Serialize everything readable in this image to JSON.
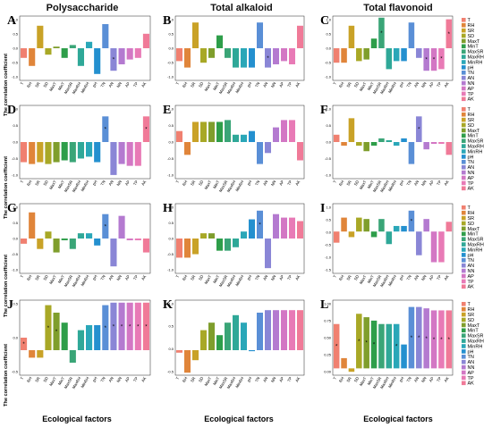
{
  "column_titles": [
    "Polysaccharide",
    "Total alkaloid",
    "Total flavonoid"
  ],
  "y_axis_label": "The correlation coefficient",
  "x_axis_label": "Ecological factors",
  "legend_title": "",
  "colors": [
    "#f08070",
    "#e0853a",
    "#c9a227",
    "#a8a826",
    "#7f9e2c",
    "#2e9e4a",
    "#3aa577",
    "#2fa898",
    "#2aa7b8",
    "#2490cf",
    "#5a8fd6",
    "#8a86d6",
    "#b47ad0",
    "#d377c4",
    "#e87ab6",
    "#f07a98"
  ],
  "chart_data": {
    "type": "bar",
    "categories": [
      "T",
      "RH",
      "SR",
      "SD",
      "MaxT",
      "MinT",
      "MaxSR",
      "MaxRH",
      "MinRH",
      "pH",
      "TN",
      "AN",
      "NN",
      "AP",
      "TP",
      "AK"
    ],
    "panels": [
      {
        "letter": "A",
        "ylim": [
          -1,
          1
        ],
        "ticks": [
          "1.0",
          "0.5",
          "0.0",
          "-0.5",
          "-1.0"
        ],
        "values": [
          -0.3,
          -0.55,
          0.7,
          -0.2,
          0.05,
          -0.3,
          0.1,
          -0.55,
          0.2,
          -0.8,
          0.75,
          -0.7,
          -0.5,
          -0.35,
          -0.3,
          0.45
        ],
        "stars": [
          11
        ]
      },
      {
        "letter": "B",
        "ylim": [
          -1,
          1
        ],
        "ticks": [
          "1.0",
          "0.5",
          "0.0",
          "-0.5",
          "-1.0"
        ],
        "values": [
          -0.4,
          -0.6,
          0.8,
          -0.45,
          -0.3,
          0.4,
          -0.3,
          -0.6,
          -0.6,
          -0.6,
          0.8,
          -0.6,
          -0.5,
          -0.4,
          -0.5,
          0.7
        ],
        "stars": [
          11
        ]
      },
      {
        "letter": "C",
        "ylim": [
          -1,
          1
        ],
        "ticks": [
          "1.0",
          "0.5",
          "0.0",
          "-0.5",
          "-1.0"
        ],
        "values": [
          -0.45,
          -0.45,
          0.7,
          -0.4,
          -0.35,
          0.3,
          0.95,
          -0.65,
          -0.4,
          -0.4,
          0.8,
          -0.3,
          -0.7,
          -0.7,
          -0.65,
          0.9
        ],
        "stars": [
          6,
          12,
          13,
          14,
          15
        ]
      },
      {
        "letter": "D",
        "ylim": [
          -1,
          1
        ],
        "ticks": [
          "1.0",
          "0.5",
          "0.0",
          "-0.5",
          "-1.0"
        ],
        "values": [
          -0.55,
          -0.6,
          -0.55,
          -0.6,
          -0.55,
          -0.5,
          -0.55,
          -0.45,
          -0.4,
          -0.55,
          0.7,
          -0.9,
          -0.6,
          -0.65,
          -0.65,
          0.7
        ],
        "stars": [
          10,
          15
        ]
      },
      {
        "letter": "E",
        "ylim": [
          -1,
          1
        ],
        "ticks": [
          "1.0",
          "0.5",
          "0.0",
          "-0.5",
          "-1.0"
        ],
        "values": [
          0.3,
          -0.35,
          0.55,
          0.55,
          0.55,
          0.55,
          0.6,
          0.2,
          0.2,
          0.3,
          -0.6,
          -0.3,
          0.4,
          0.6,
          0.6,
          -0.5
        ],
        "stars": []
      },
      {
        "letter": "F",
        "ylim": [
          -1,
          1
        ],
        "ticks": [
          "1.0",
          "0.5",
          "0.0",
          "-0.5",
          "-1.0"
        ],
        "values": [
          0.2,
          -0.1,
          0.65,
          -0.1,
          -0.25,
          -0.1,
          0.1,
          0.05,
          -0.1,
          0.1,
          -0.6,
          0.7,
          -0.2,
          -0.05,
          -0.05,
          -0.35
        ],
        "stars": [
          11
        ]
      },
      {
        "letter": "G",
        "ylim": [
          -1,
          1
        ],
        "ticks": [
          "1.0",
          "0.5",
          "0.0",
          "-0.5",
          "-1.0"
        ],
        "values": [
          -0.15,
          0.75,
          -0.3,
          0.2,
          -0.4,
          -0.05,
          -0.3,
          0.15,
          0.15,
          -0.2,
          0.7,
          -0.8,
          0.65,
          -0.05,
          -0.05,
          -0.4
        ],
        "stars": [
          10
        ]
      },
      {
        "letter": "H",
        "ylim": [
          -1,
          1
        ],
        "ticks": [
          "1.0",
          "0.5",
          "0.0",
          "-0.5",
          "-1.0"
        ],
        "values": [
          -0.55,
          -0.55,
          -0.45,
          0.15,
          0.15,
          -0.35,
          -0.35,
          -0.25,
          0.2,
          0.55,
          0.8,
          -0.85,
          0.7,
          0.6,
          0.6,
          0.5
        ],
        "stars": [
          10
        ]
      },
      {
        "letter": "I",
        "ylim": [
          -1.5,
          1
        ],
        "ticks": [
          "1.0",
          "0.5",
          "0.0",
          "-0.5",
          "-1.0",
          "-1.5"
        ],
        "values": [
          -0.4,
          0.5,
          -0.2,
          0.5,
          0.45,
          -0.2,
          0.45,
          -0.45,
          0.2,
          0.2,
          0.75,
          -0.85,
          0.45,
          -1.1,
          -1.1,
          0.35
        ],
        "stars": [
          10
        ]
      },
      {
        "letter": "J",
        "ylim": [
          -0.5,
          1
        ],
        "ticks": [
          "0.5",
          "0.0",
          "-0.5"
        ],
        "values": [
          0.25,
          -0.15,
          -0.15,
          0.9,
          0.75,
          0.55,
          -0.25,
          0.4,
          0.5,
          0.5,
          0.9,
          0.95,
          0.95,
          0.95,
          0.95,
          0.95
        ],
        "stars": [
          0,
          3,
          4,
          10,
          11,
          12,
          13,
          14,
          15
        ]
      },
      {
        "letter": "K",
        "ylim": [
          -0.5,
          1
        ],
        "ticks": [
          "1.0",
          "0.5",
          "0.0",
          "-0.5"
        ],
        "values": [
          -0.05,
          -0.45,
          -0.2,
          0.4,
          0.55,
          0.3,
          0.55,
          0.7,
          0.55,
          -0.02,
          0.75,
          0.8,
          0.8,
          0.8,
          0.8,
          0.8
        ],
        "stars": []
      },
      {
        "letter": "L",
        "ylim": [
          -0.1,
          1
        ],
        "ticks": [
          "1.00",
          "0.75",
          "0.50",
          "0.25",
          "0.00"
        ],
        "values": [
          0.65,
          0.15,
          -0.05,
          0.8,
          0.75,
          0.7,
          0.65,
          0.65,
          0.65,
          0.35,
          0.9,
          0.9,
          0.88,
          0.85,
          0.85,
          0.85
        ],
        "stars": [
          0,
          3,
          4,
          5,
          8,
          10,
          11,
          12,
          13,
          14,
          15
        ]
      }
    ]
  }
}
